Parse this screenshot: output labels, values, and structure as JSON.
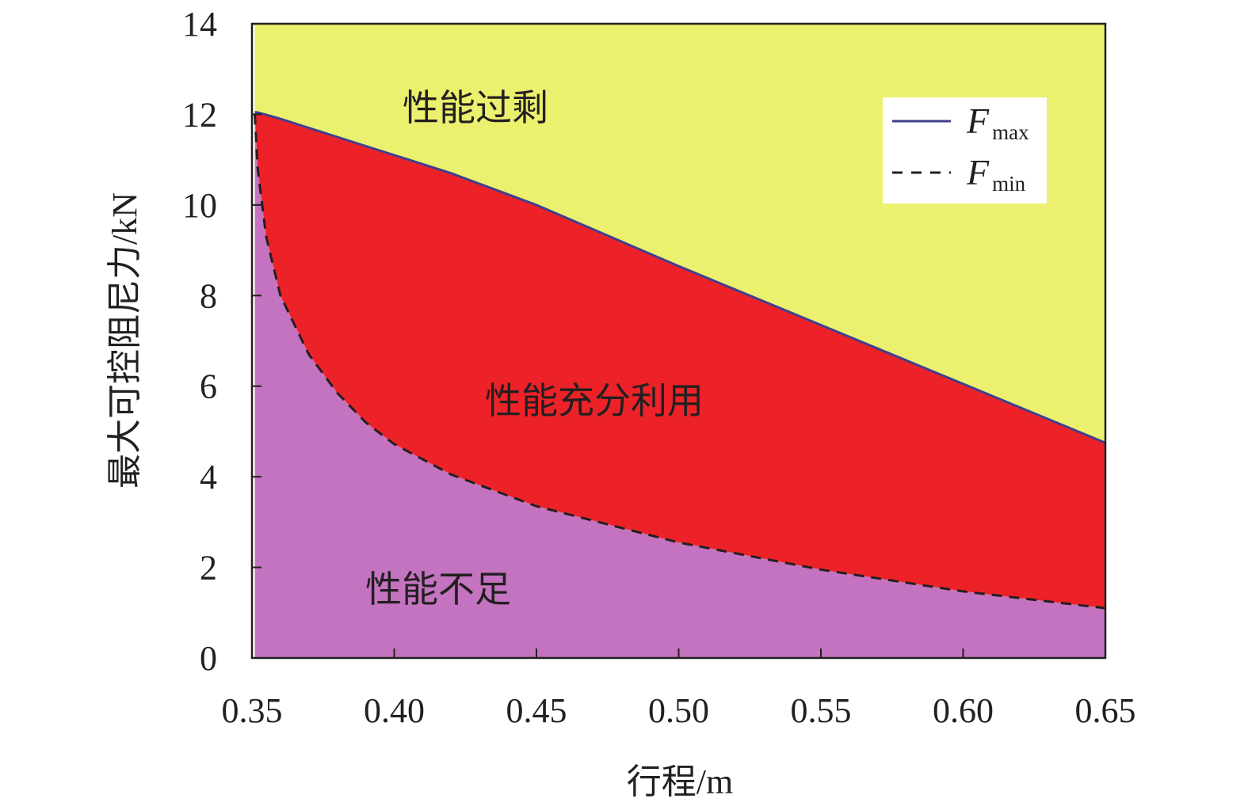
{
  "chart_data": {
    "type": "area",
    "xlabel": "行程/m",
    "ylabel": "最大可控阻尼力/kN",
    "xlim": [
      0.35,
      0.65
    ],
    "ylim": [
      0,
      14
    ],
    "xticks": [
      "0.35",
      "0.40",
      "0.45",
      "0.50",
      "0.55",
      "0.60",
      "0.65"
    ],
    "yticks": [
      "0",
      "2",
      "4",
      "6",
      "8",
      "10",
      "12",
      "14"
    ],
    "grid": false,
    "legend_position": "top-right",
    "x": [
      0.351,
      0.352,
      0.355,
      0.36,
      0.37,
      0.38,
      0.39,
      0.4,
      0.42,
      0.45,
      0.5,
      0.55,
      0.6,
      0.65
    ],
    "series": [
      {
        "name": "F_max",
        "legend_main": "F",
        "legend_sub": "max",
        "style": "solid",
        "color": "#3f3f8f",
        "values": [
          12.05,
          12.04,
          11.99,
          11.9,
          11.7,
          11.5,
          11.3,
          11.1,
          10.7,
          10.0,
          8.65,
          7.35,
          6.05,
          4.75
        ]
      },
      {
        "name": "F_min",
        "legend_main": "F",
        "legend_sub": "min",
        "style": "dashed",
        "color": "#231f20",
        "values": [
          12.0,
          10.8,
          9.3,
          8.0,
          6.7,
          5.85,
          5.2,
          4.72,
          4.05,
          3.35,
          2.55,
          1.95,
          1.47,
          1.1
        ]
      }
    ],
    "regions": [
      {
        "label": "性能过剩",
        "color": "#ebf06e"
      },
      {
        "label": "性能充分利用",
        "color": "#ed2229"
      },
      {
        "label": "性能不足",
        "color": "#c473c0"
      }
    ]
  }
}
